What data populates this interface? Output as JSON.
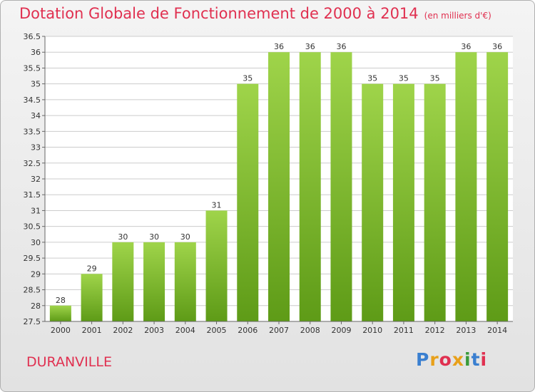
{
  "title": "Dotation Globale de Fonctionnement de 2000 à 2014",
  "subtitle": "(en milliers d'€)",
  "city": "DURANVILLE",
  "brand": "Proxiti",
  "colors": {
    "bar_top": "#9fd44a",
    "bar_bottom": "#5e9b17",
    "title": "#e03050"
  },
  "chart_data": {
    "type": "bar",
    "categories": [
      "2000",
      "2001",
      "2002",
      "2003",
      "2004",
      "2005",
      "2006",
      "2007",
      "2008",
      "2009",
      "2010",
      "2011",
      "2012",
      "2013",
      "2014"
    ],
    "values": [
      28,
      29,
      30,
      30,
      30,
      31,
      35,
      36,
      36,
      36,
      35,
      35,
      35,
      36,
      36
    ],
    "ylim": [
      27.5,
      36.5
    ],
    "yticks": [
      "27.5",
      "28",
      "28.5",
      "29",
      "29.5",
      "30",
      "30.5",
      "31",
      "31.5",
      "32",
      "32.5",
      "33",
      "33.5",
      "34",
      "34.5",
      "35",
      "35.5",
      "36",
      "36.5"
    ],
    "grid": true
  }
}
